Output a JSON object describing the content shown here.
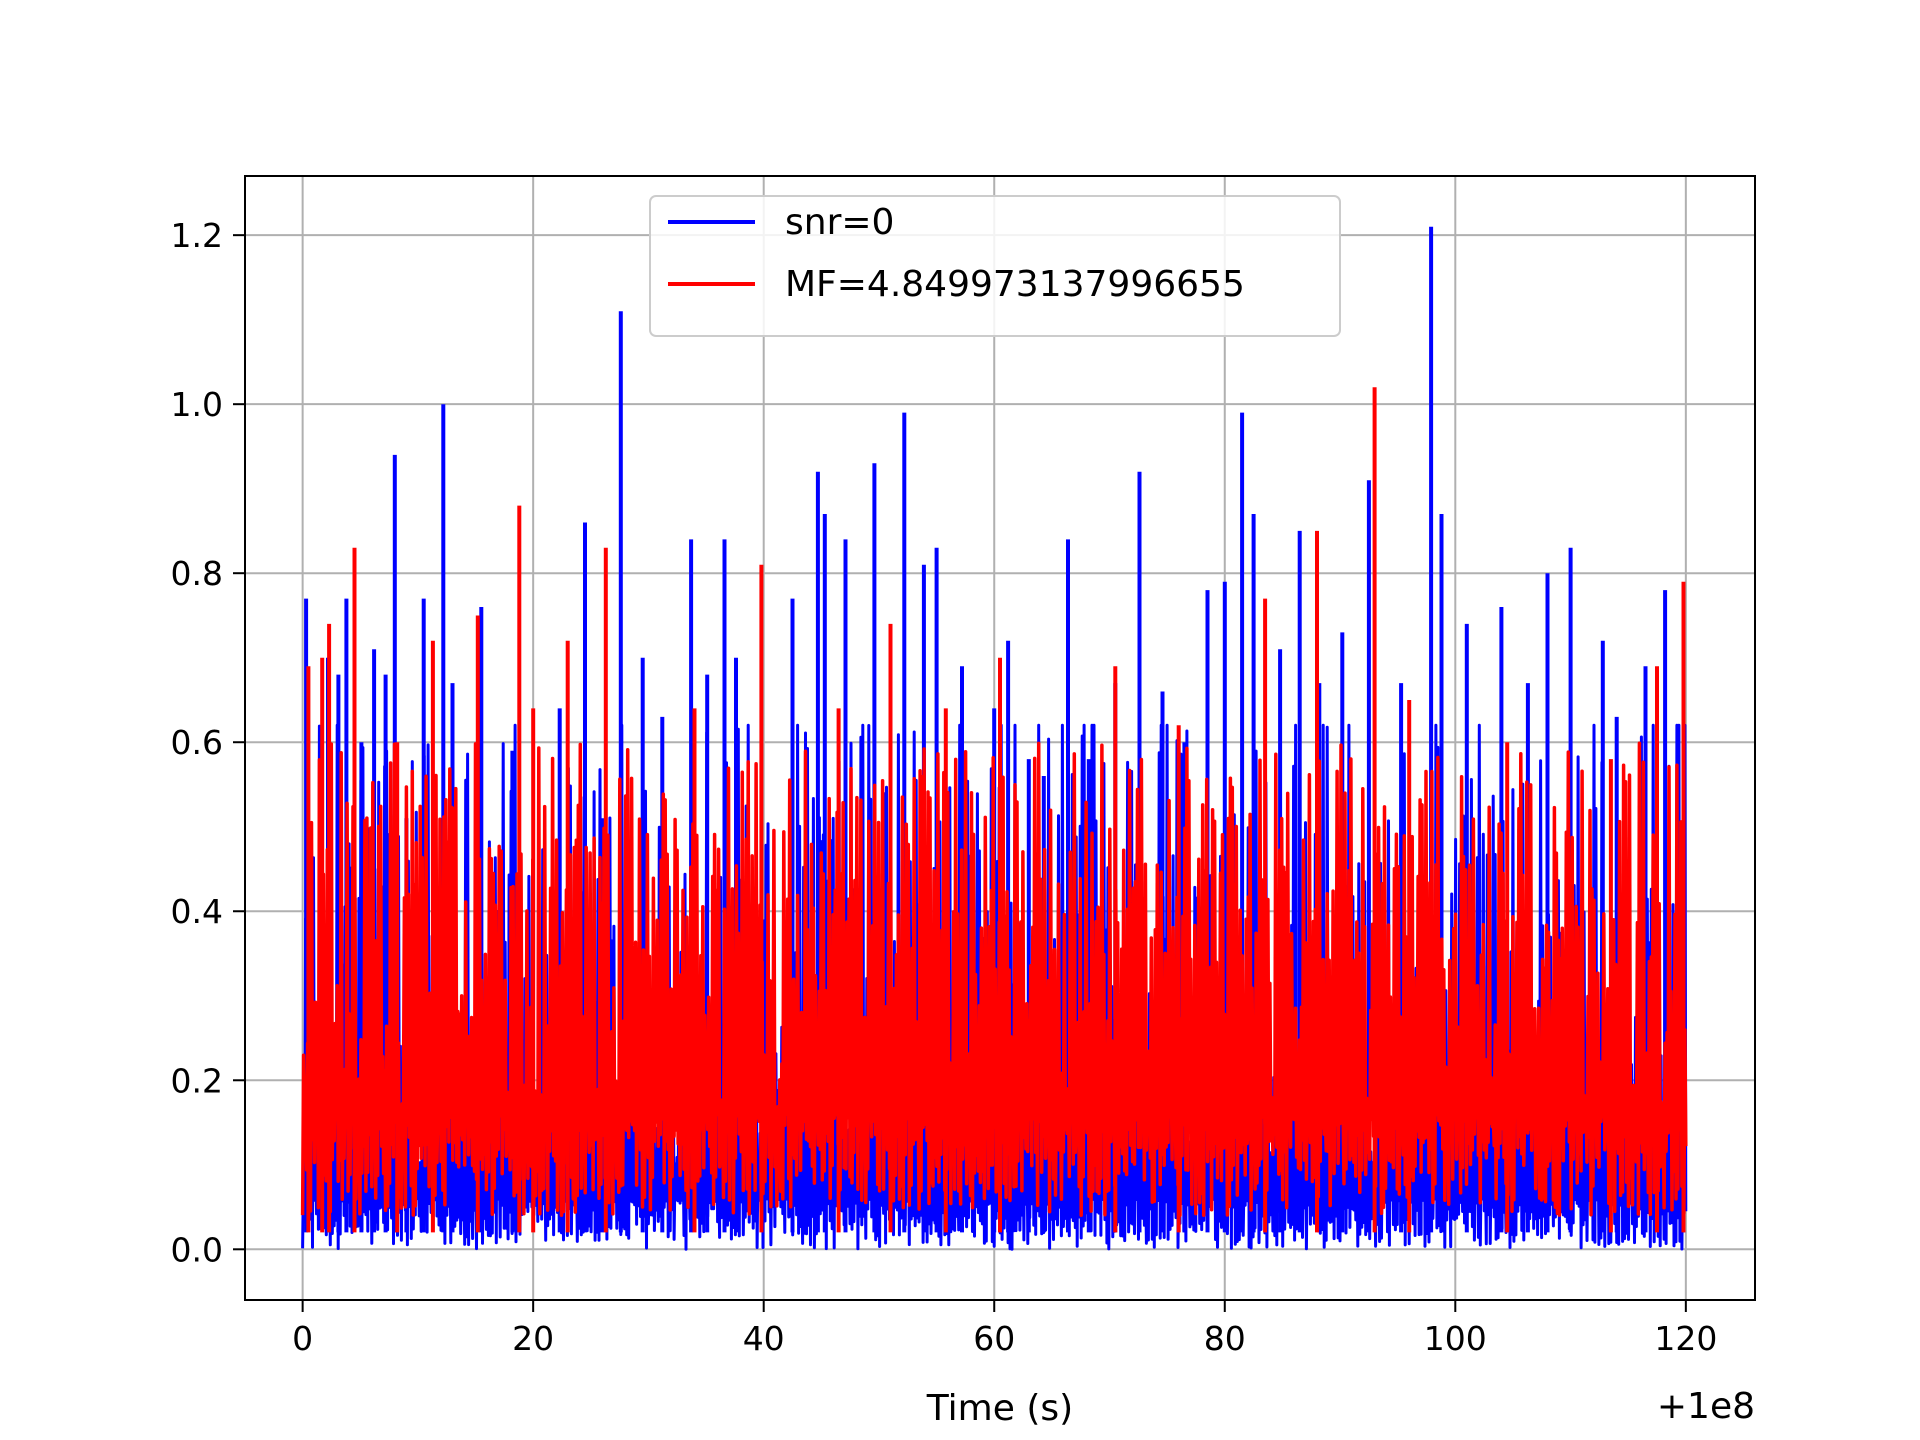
{
  "chart_data": {
    "type": "line",
    "title": "",
    "xlabel": "Time (s)",
    "ylabel": "",
    "x_offset_label": "+1e8",
    "xlim": [
      -5,
      126
    ],
    "ylim": [
      -0.06,
      1.27
    ],
    "x_ticks": [
      0,
      20,
      40,
      60,
      80,
      100,
      120
    ],
    "x_tick_labels": [
      "0",
      "20",
      "40",
      "60",
      "80",
      "100",
      "120"
    ],
    "y_ticks": [
      0.0,
      0.2,
      0.4,
      0.6,
      0.8,
      1.0,
      1.2
    ],
    "y_tick_labels": [
      "0.0",
      "0.2",
      "0.4",
      "0.6",
      "0.8",
      "1.0",
      "1.2"
    ],
    "grid": true,
    "legend_position": "top-center",
    "x_range": [
      0,
      120
    ],
    "series": [
      {
        "name": "snr=0",
        "color": "#0000ff",
        "baseline": 0.2,
        "peaks": [
          [
            0.3,
            0.77
          ],
          [
            2.2,
            0.7
          ],
          [
            3.1,
            0.68
          ],
          [
            3.8,
            0.77
          ],
          [
            5.1,
            0.6
          ],
          [
            6.2,
            0.71
          ],
          [
            7.2,
            0.68
          ],
          [
            8.0,
            0.94
          ],
          [
            9.0,
            0.51
          ],
          [
            10.5,
            0.77
          ],
          [
            12.2,
            1.0
          ],
          [
            13.0,
            0.67
          ],
          [
            15.5,
            0.76
          ],
          [
            18.2,
            0.59
          ],
          [
            22.3,
            0.64
          ],
          [
            24.5,
            0.86
          ],
          [
            26.0,
            0.51
          ],
          [
            27.6,
            1.11
          ],
          [
            29.5,
            0.7
          ],
          [
            31.2,
            0.63
          ],
          [
            33.7,
            0.84
          ],
          [
            35.1,
            0.68
          ],
          [
            36.6,
            0.84
          ],
          [
            37.6,
            0.7
          ],
          [
            42.5,
            0.77
          ],
          [
            44.7,
            0.92
          ],
          [
            45.3,
            0.87
          ],
          [
            47.1,
            0.84
          ],
          [
            49.6,
            0.93
          ],
          [
            52.2,
            0.99
          ],
          [
            53.9,
            0.81
          ],
          [
            55.0,
            0.83
          ],
          [
            57.2,
            0.69
          ],
          [
            60.0,
            0.64
          ],
          [
            61.2,
            0.72
          ],
          [
            63.0,
            0.58
          ],
          [
            64.3,
            0.56
          ],
          [
            66.4,
            0.84
          ],
          [
            68.2,
            0.58
          ],
          [
            70.5,
            0.67
          ],
          [
            72.6,
            0.92
          ],
          [
            74.6,
            0.66
          ],
          [
            76.5,
            0.6
          ],
          [
            78.5,
            0.78
          ],
          [
            80.0,
            0.79
          ],
          [
            81.5,
            0.99
          ],
          [
            82.5,
            0.87
          ],
          [
            84.8,
            0.71
          ],
          [
            86.5,
            0.85
          ],
          [
            88.2,
            0.67
          ],
          [
            90.2,
            0.73
          ],
          [
            92.5,
            0.91
          ],
          [
            95.3,
            0.67
          ],
          [
            97.9,
            1.21
          ],
          [
            98.8,
            0.87
          ],
          [
            101.0,
            0.74
          ],
          [
            104.0,
            0.76
          ],
          [
            106.3,
            0.67
          ],
          [
            108.0,
            0.8
          ],
          [
            110.0,
            0.83
          ],
          [
            112.8,
            0.72
          ],
          [
            114.0,
            0.63
          ],
          [
            116.5,
            0.69
          ],
          [
            118.2,
            0.78
          ],
          [
            119.8,
            0.6
          ]
        ]
      },
      {
        "name": "MF=4.849973137996655",
        "color": "#ff0000",
        "baseline": 0.24,
        "peaks": [
          [
            0.5,
            0.69
          ],
          [
            1.7,
            0.7
          ],
          [
            2.3,
            0.74
          ],
          [
            4.5,
            0.83
          ],
          [
            8.2,
            0.6
          ],
          [
            11.3,
            0.72
          ],
          [
            15.2,
            0.75
          ],
          [
            18.8,
            0.88
          ],
          [
            20.0,
            0.64
          ],
          [
            23.0,
            0.72
          ],
          [
            26.3,
            0.83
          ],
          [
            34.0,
            0.64
          ],
          [
            39.8,
            0.81
          ],
          [
            46.5,
            0.64
          ],
          [
            51.0,
            0.74
          ],
          [
            55.8,
            0.64
          ],
          [
            60.5,
            0.7
          ],
          [
            70.5,
            0.69
          ],
          [
            76.0,
            0.62
          ],
          [
            83.5,
            0.77
          ],
          [
            88.0,
            0.85
          ],
          [
            93.0,
            1.02
          ],
          [
            96.0,
            0.65
          ],
          [
            104.5,
            0.6
          ],
          [
            113.5,
            0.58
          ],
          [
            117.5,
            0.69
          ],
          [
            119.8,
            0.79
          ]
        ]
      }
    ]
  }
}
